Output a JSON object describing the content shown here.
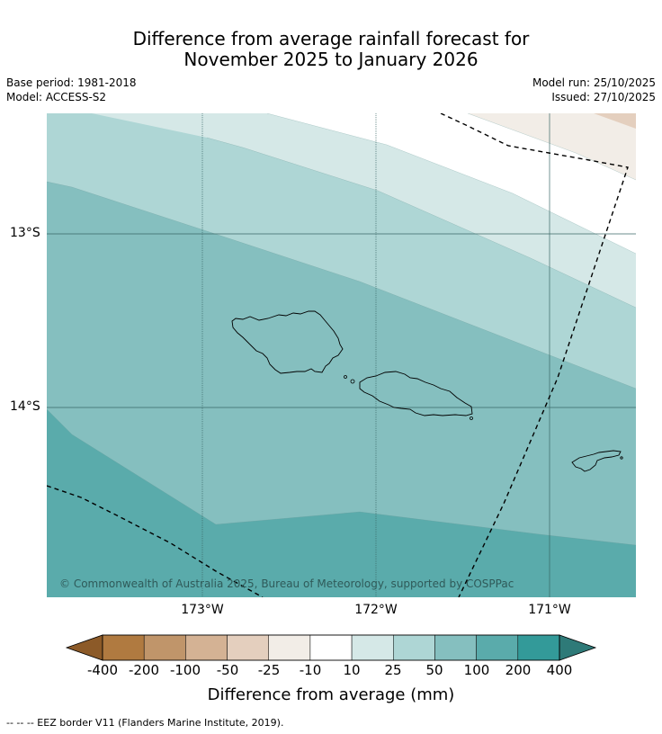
{
  "title_line1": "Difference from average rainfall forecast for",
  "title_line2": "November 2025 to January 2026",
  "base_period": "Base period: 1981-2018",
  "model": "Model: ACCESS-S2",
  "model_run": "Model run: 25/10/2025",
  "issued": "Issued: 27/10/2025",
  "map": {
    "lat_labels": [
      "13°S",
      "14°S"
    ],
    "lon_labels": [
      "173°W",
      "172°W",
      "171°W"
    ],
    "copyright": "© Commonwealth of Australia 2025, Bureau of Meteorology, supported by COSPPac"
  },
  "colorbar": {
    "label": "Difference from average (mm)",
    "ticks": [
      "-400",
      "-200",
      "-100",
      "-50",
      "-25",
      "-10",
      "10",
      "25",
      "50",
      "100",
      "200",
      "400"
    ],
    "colors": {
      "under": "#8c5a28",
      "bins": [
        "#b07a40",
        "#c0956a",
        "#d4b294",
        "#e4cfbe",
        "#f2ede7",
        "#ffffff",
        "#d5e8e7",
        "#aed6d5",
        "#85bfbf",
        "#5aabab",
        "#339a99"
      ],
      "over": "#2e7a78"
    }
  },
  "footer": "--  --  -- EEZ border V11 (Flanders Marine Institute, 2019)."
}
